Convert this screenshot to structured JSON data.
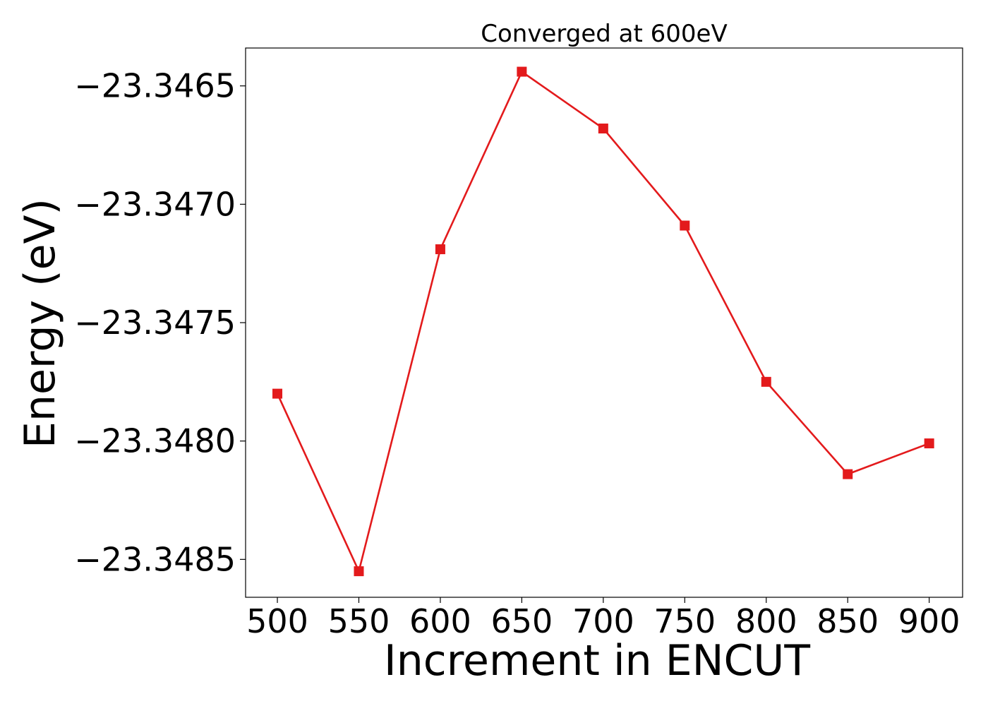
{
  "chart_data": {
    "type": "line",
    "title": "Converged at 600eV",
    "xlabel": "Increment in ENCUT",
    "ylabel": "Energy (eV)",
    "x": [
      500,
      550,
      600,
      650,
      700,
      750,
      800,
      850,
      900
    ],
    "series": [
      {
        "values": [
          -23.3478,
          -23.34855,
          -23.34719,
          -23.34644,
          -23.34668,
          -23.34709,
          -23.34775,
          -23.34814,
          -23.34801
        ],
        "color": "#e31a1c",
        "marker": "square"
      }
    ],
    "xticks": [
      500,
      550,
      600,
      650,
      700,
      750,
      800,
      850,
      900
    ],
    "xtick_labels": [
      "500",
      "550",
      "600",
      "650",
      "700",
      "750",
      "800",
      "850",
      "900"
    ],
    "yticks": [
      -23.3465,
      -23.347,
      -23.3475,
      -23.348,
      -23.3485
    ],
    "ytick_labels": [
      "−23.3465",
      "−23.3470",
      "−23.3475",
      "−23.3480",
      "−23.3485"
    ],
    "xlim": [
      480.5,
      920.5
    ],
    "ylim": [
      -23.34866,
      -23.34634
    ],
    "grid": false,
    "legend": "none"
  }
}
